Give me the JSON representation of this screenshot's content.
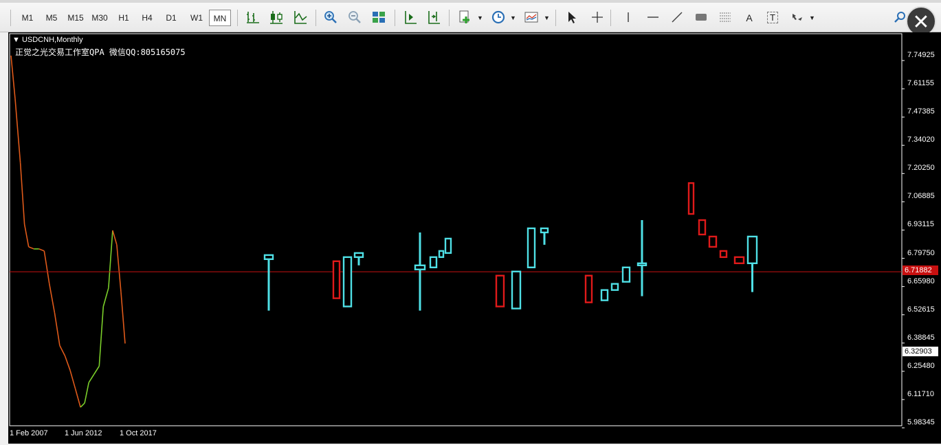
{
  "toolbar": {
    "timeframes": [
      {
        "label": "M1",
        "active": false
      },
      {
        "label": "M5",
        "active": false
      },
      {
        "label": "M15",
        "active": false
      },
      {
        "label": "M30",
        "active": false
      },
      {
        "label": "H1",
        "active": false
      },
      {
        "label": "H4",
        "active": false
      },
      {
        "label": "D1",
        "active": false
      },
      {
        "label": "W1",
        "active": false
      },
      {
        "label": "MN",
        "active": true
      }
    ],
    "icons": [
      "bar-chart-icon",
      "candlestick-icon",
      "line-chart-icon",
      "zoom-in-icon",
      "zoom-out-icon",
      "tile-windows-icon",
      "chart-shift-icon",
      "autoscroll-icon",
      "indicators-icon",
      "periods-clock-icon",
      "templates-icon",
      "cursor-icon",
      "crosshair-icon",
      "vertical-line-icon",
      "horizontal-line-icon",
      "trendline-icon",
      "rectangle-icon",
      "fibonacci-icon",
      "text-icon",
      "text-label-icon",
      "arrows-icon",
      "search-icon"
    ],
    "text_tool_label": "A",
    "text_label_tool_label": "T"
  },
  "chart": {
    "symbol": "USDCNH,Monthly",
    "watermark": "正觉之光交易工作室QPA 微信QQ:805165075",
    "current_price": "6.71882",
    "cursor_price": "6.32903",
    "colors": {
      "background": "#000000",
      "bull": "#4fe0e6",
      "bear": "#e01a1a",
      "price_line": "#c81010",
      "ohlc_up": "#7bcf2a",
      "ohlc_down": "#e05a1a"
    }
  },
  "chart_data": {
    "type": "candlestick",
    "symbol": "USDCNH",
    "timeframe": "Monthly",
    "x_ticks": [
      "1 Feb 2007",
      "1 Jun 2012",
      "1 Oct 2017"
    ],
    "y_ticks": [
      "7.74925",
      "7.61155",
      "7.47385",
      "7.34020",
      "7.20250",
      "7.06885",
      "6.93115",
      "6.79750",
      "6.65980",
      "6.52615",
      "6.38845",
      "6.25480",
      "6.11710",
      "5.98345"
    ],
    "ylim": [
      5.98345,
      7.74925
    ],
    "current_price": 6.71882,
    "history_line": [
      {
        "x": 2007.1,
        "y": 7.77
      },
      {
        "x": 2007.5,
        "y": 7.56
      },
      {
        "x": 2008.0,
        "y": 7.25
      },
      {
        "x": 2008.4,
        "y": 6.95
      },
      {
        "x": 2008.8,
        "y": 6.84
      },
      {
        "x": 2009.3,
        "y": 6.83
      },
      {
        "x": 2009.8,
        "y": 6.83
      },
      {
        "x": 2010.3,
        "y": 6.82
      },
      {
        "x": 2010.8,
        "y": 6.66
      },
      {
        "x": 2011.3,
        "y": 6.52
      },
      {
        "x": 2011.8,
        "y": 6.36
      },
      {
        "x": 2012.3,
        "y": 6.31
      },
      {
        "x": 2012.8,
        "y": 6.24
      },
      {
        "x": 2013.3,
        "y": 6.15
      },
      {
        "x": 2013.8,
        "y": 6.06
      },
      {
        "x": 2014.2,
        "y": 6.08
      },
      {
        "x": 2014.6,
        "y": 6.18
      },
      {
        "x": 2015.1,
        "y": 6.22
      },
      {
        "x": 2015.6,
        "y": 6.26
      },
      {
        "x": 2016.0,
        "y": 6.55
      },
      {
        "x": 2016.5,
        "y": 6.64
      },
      {
        "x": 2016.9,
        "y": 6.92
      },
      {
        "x": 2017.3,
        "y": 6.85
      },
      {
        "x": 2017.7,
        "y": 6.62
      },
      {
        "x": 2018.1,
        "y": 6.37
      }
    ],
    "candles": [
      {
        "pos": 0,
        "open": 6.78,
        "close": 6.8,
        "high": 6.8,
        "low": 6.53
      },
      {
        "pos": 1,
        "open": 6.77,
        "close": 6.59,
        "high": 6.77,
        "low": 6.59
      },
      {
        "pos": 2,
        "open": 6.55,
        "close": 6.79,
        "high": 6.79,
        "low": 6.55
      },
      {
        "pos": 3,
        "open": 6.79,
        "close": 6.81,
        "high": 6.81,
        "low": 6.75
      },
      {
        "pos": 4,
        "open": 6.73,
        "close": 6.75,
        "high": 6.91,
        "low": 6.53
      },
      {
        "pos": 5,
        "open": 6.74,
        "close": 6.79,
        "high": 6.79,
        "low": 6.74
      },
      {
        "pos": 6,
        "open": 6.79,
        "close": 6.82,
        "high": 6.82,
        "low": 6.79
      },
      {
        "pos": 7,
        "open": 6.81,
        "close": 6.88,
        "high": 6.88,
        "low": 6.81
      },
      {
        "pos": 8,
        "open": 6.7,
        "close": 6.55,
        "high": 6.7,
        "low": 6.55
      },
      {
        "pos": 9,
        "open": 6.54,
        "close": 6.72,
        "high": 6.72,
        "low": 6.54
      },
      {
        "pos": 10,
        "open": 6.74,
        "close": 6.93,
        "high": 6.93,
        "low": 6.74
      },
      {
        "pos": 11,
        "open": 6.91,
        "close": 6.93,
        "high": 6.93,
        "low": 6.85
      },
      {
        "pos": 12,
        "open": 6.7,
        "close": 6.57,
        "high": 6.7,
        "low": 6.57
      },
      {
        "pos": 13,
        "open": 6.58,
        "close": 6.63,
        "high": 6.63,
        "low": 6.58
      },
      {
        "pos": 14,
        "open": 6.63,
        "close": 6.66,
        "high": 6.66,
        "low": 6.63
      },
      {
        "pos": 15,
        "open": 6.67,
        "close": 6.74,
        "high": 6.74,
        "low": 6.67
      },
      {
        "pos": 16,
        "open": 6.75,
        "close": 6.76,
        "high": 6.97,
        "low": 6.6
      },
      {
        "pos": 17,
        "open": 7.15,
        "close": 7.0,
        "high": 7.15,
        "low": 7.0
      },
      {
        "pos": 18,
        "open": 6.97,
        "close": 6.9,
        "high": 6.97,
        "low": 6.9
      },
      {
        "pos": 19,
        "open": 6.89,
        "close": 6.84,
        "high": 6.89,
        "low": 6.84
      },
      {
        "pos": 20,
        "open": 6.82,
        "close": 6.79,
        "high": 6.82,
        "low": 6.79
      },
      {
        "pos": 21,
        "open": 6.79,
        "close": 6.76,
        "high": 6.79,
        "low": 6.76
      },
      {
        "pos": 22,
        "open": 6.76,
        "close": 6.89,
        "high": 6.89,
        "low": 6.62
      }
    ]
  }
}
